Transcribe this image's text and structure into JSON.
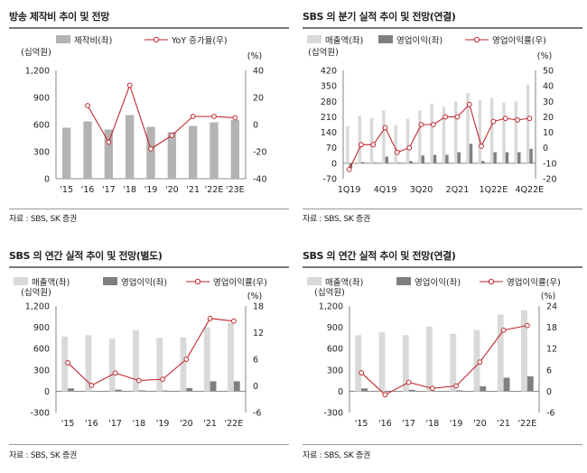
{
  "colors": {
    "sales": "#d9d9d9",
    "prod": "#b3b3b3",
    "op": "#7f7f7f",
    "line": "#c0272d"
  },
  "panels": [
    {
      "title": "방송 제작비 추이 및 전망",
      "source": "자료 : SBS, SK 증권"
    },
    {
      "title": "SBS 의 분기 실적 추이 및 전망(연결)",
      "source": "자료 : SBS, SK 증권"
    },
    {
      "title": "SBS 의 연간 실적 추이 및 전망(별도)",
      "source": "자료 : SBS, SK 증권"
    },
    {
      "title": "SBS 의 연간 실적 추이 및 전망(연결)",
      "source": "자료 : SBS, SK 증권"
    }
  ],
  "chart_data": [
    {
      "type": "bar",
      "title": "방송 제작비 추이 및 전망",
      "ylabel_left": "(십억원)",
      "ylabel_right": "(%)",
      "ylim_left": [
        0,
        1200
      ],
      "yticks_left": [
        "0",
        "300",
        "600",
        "900",
        "1,200"
      ],
      "ylim_right": [
        -40,
        40
      ],
      "yticks_right": [
        "-40",
        "-20",
        "0",
        "20",
        "40"
      ],
      "categories": [
        "'15",
        "'16",
        "'17",
        "'18",
        "'19",
        "'20",
        "'21",
        "'22E",
        "'23E"
      ],
      "legend": [
        "제작비(좌)",
        "YoY 증가율(우)"
      ],
      "series": [
        {
          "name": "제작비(좌)",
          "kind": "bar",
          "axis": "left",
          "color": "#b3b3b3",
          "values": [
            565,
            635,
            545,
            705,
            575,
            515,
            585,
            625,
            650
          ]
        },
        {
          "name": "YoY 증가율(우)",
          "kind": "line",
          "axis": "right",
          "values": [
            null,
            14,
            -13,
            29,
            -18,
            -8,
            6,
            6,
            5
          ]
        }
      ]
    },
    {
      "type": "bar",
      "title": "SBS 의 분기 실적 추이 및 전망(연결)",
      "ylabel_left": "(십억원)",
      "ylabel_right": "(%)",
      "ylim_left": [
        -70,
        420
      ],
      "yticks_left": [
        "-70",
        "0",
        "70",
        "140",
        "210",
        "280",
        "350",
        "420"
      ],
      "ylim_right": [
        -20,
        50
      ],
      "yticks_right": [
        "-20",
        "-10",
        "0",
        "10",
        "20",
        "30",
        "40",
        "50"
      ],
      "categories": [
        "1Q19",
        "2Q19",
        "3Q19",
        "4Q19",
        "1Q20",
        "2Q20",
        "3Q20",
        "4Q20",
        "1Q21",
        "2Q21",
        "3Q21",
        "4Q21",
        "1Q22E",
        "2Q22E",
        "3Q22E",
        "4Q22E"
      ],
      "category_labels": [
        "1Q19",
        "",
        "",
        "4Q19",
        "",
        "",
        "3Q20",
        "",
        "",
        "2Q21",
        "",
        "",
        "1Q22E",
        "",
        "",
        "4Q22E"
      ],
      "legend": [
        "매출액(좌)",
        "영업이익(좌)",
        "영업이익률(우)"
      ],
      "series": [
        {
          "name": "매출액(좌)",
          "kind": "bar",
          "axis": "left",
          "color": "#d9d9d9",
          "values": [
            168,
            215,
            205,
            240,
            172,
            200,
            238,
            270,
            255,
            280,
            318,
            285,
            295,
            275,
            280,
            355
          ]
        },
        {
          "name": "영업이익(좌)",
          "kind": "bar",
          "axis": "left",
          "color": "#7f7f7f",
          "values": [
            -22,
            5,
            3,
            30,
            3,
            10,
            35,
            38,
            38,
            50,
            88,
            10,
            50,
            50,
            50,
            65
          ]
        },
        {
          "name": "영업이익률(우)",
          "kind": "line",
          "axis": "right",
          "values": [
            -14,
            2,
            2,
            13,
            -3,
            0,
            15,
            15,
            20,
            20,
            28,
            1,
            17,
            19,
            18,
            19
          ]
        }
      ]
    },
    {
      "type": "bar",
      "title": "SBS 의 연간 실적 추이 및 전망(별도)",
      "ylabel_left": "(십억원)",
      "ylabel_right": "(%)",
      "ylim_left": [
        -300,
        1200
      ],
      "yticks_left": [
        "-300",
        "0",
        "300",
        "600",
        "900",
        "1,200"
      ],
      "ylim_right": [
        -6,
        18
      ],
      "yticks_right": [
        "-6",
        "0",
        "6",
        "12",
        "18"
      ],
      "categories": [
        "'15",
        "'16",
        "'17",
        "'18",
        "'19",
        "'20",
        "'21",
        "'22E"
      ],
      "legend": [
        "매출액(좌)",
        "영업이익(좌)",
        "영업이익률(우)"
      ],
      "series": [
        {
          "name": "매출액(좌)",
          "kind": "bar",
          "axis": "left",
          "color": "#d9d9d9",
          "values": [
            770,
            790,
            740,
            860,
            750,
            760,
            900,
            960
          ]
        },
        {
          "name": "영업이익(좌)",
          "kind": "bar",
          "axis": "left",
          "color": "#7f7f7f",
          "values": [
            40,
            3,
            22,
            12,
            10,
            45,
            140,
            140
          ]
        },
        {
          "name": "영업이익률(우)",
          "kind": "line",
          "axis": "right",
          "values": [
            5.2,
            0.1,
            2.9,
            1.2,
            1.5,
            6.0,
            15.2,
            14.6
          ]
        }
      ]
    },
    {
      "type": "bar",
      "title": "SBS 의 연간 실적 추이 및 전망(연결)",
      "ylabel_left": "(십억원)",
      "ylabel_right": "(%)",
      "ylim_left": [
        -300,
        1200
      ],
      "yticks_left": [
        "-300",
        "0",
        "300",
        "600",
        "900",
        "1,200"
      ],
      "ylim_right": [
        -6,
        24
      ],
      "yticks_right": [
        "-6",
        "0",
        "6",
        "12",
        "18",
        "24"
      ],
      "categories": [
        "'15",
        "'16",
        "'17",
        "'18",
        "'19",
        "'20",
        "'21",
        "'22E"
      ],
      "legend": [
        "매출액(좌)",
        "영업이익(좌)",
        "영업이익률(우)"
      ],
      "series": [
        {
          "name": "매출액(좌)",
          "kind": "bar",
          "axis": "left",
          "color": "#d9d9d9",
          "values": [
            790,
            830,
            790,
            910,
            810,
            860,
            1080,
            1140
          ]
        },
        {
          "name": "영업이익(좌)",
          "kind": "bar",
          "axis": "left",
          "color": "#7f7f7f",
          "values": [
            40,
            -10,
            20,
            5,
            12,
            70,
            190,
            210
          ]
        },
        {
          "name": "영업이익률(우)",
          "kind": "line",
          "axis": "right",
          "values": [
            5.2,
            -1.0,
            2.5,
            0.8,
            1.5,
            8.2,
            17.2,
            18.5
          ]
        }
      ]
    }
  ]
}
